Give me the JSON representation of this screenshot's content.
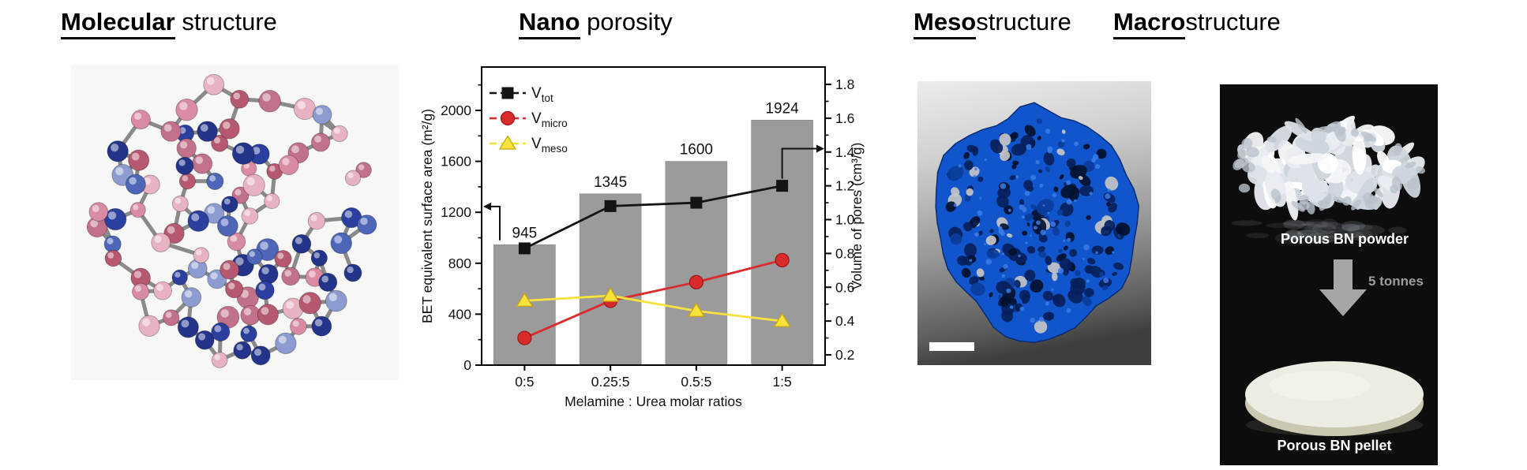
{
  "titles": [
    {
      "emphasis": "Molecular",
      "rest": " structure"
    },
    {
      "emphasis": "Nano",
      "rest": " porosity"
    },
    {
      "emphasis": "Meso",
      "rest": "structure"
    },
    {
      "emphasis": "Macro",
      "rest": "structure"
    }
  ],
  "chart_data": {
    "type": "bar+line",
    "categories": [
      "0:5",
      "0.25:5",
      "0.5:5",
      "1:5"
    ],
    "xlabel": "Melamine : Urea molar ratios",
    "bars": {
      "name": "BET equivalent surface area",
      "axis": "left",
      "values": [
        945,
        1345,
        1600,
        1924
      ],
      "labels": [
        "945",
        "1345",
        "1600",
        "1924"
      ],
      "color": "#9b9b9b"
    },
    "series": [
      {
        "name": "V_tot",
        "label_main": "V",
        "label_sub": "tot",
        "axis": "right",
        "values": [
          0.83,
          1.08,
          1.1,
          1.2
        ],
        "color": "#141414",
        "marker": "square",
        "marker_edge": "#000000"
      },
      {
        "name": "V_micro",
        "label_main": "V",
        "label_sub": "micro",
        "axis": "right",
        "values": [
          0.3,
          0.52,
          0.63,
          0.76
        ],
        "color": "#d92b2b",
        "marker": "circle",
        "marker_edge": "#9e1414"
      },
      {
        "name": "V_meso",
        "label_main": "V",
        "label_sub": "meso",
        "axis": "right",
        "values": [
          0.52,
          0.55,
          0.46,
          0.4
        ],
        "color": "#f6e23c",
        "marker": "triangle",
        "marker_edge": "#c9a70b"
      }
    ],
    "left_axis": {
      "label": "BET equivalent surface area (m²/g)",
      "ticks": [
        0,
        400,
        800,
        1200,
        1600,
        2000
      ],
      "tick_labels": [
        "0",
        "400",
        "800",
        "1200",
        "1600",
        "2000"
      ],
      "minor_step": 200,
      "min": 0,
      "max": 2340
    },
    "right_axis": {
      "label": "Volume of pores (cm³/g)",
      "ticks": [
        0.2,
        0.4,
        0.6,
        0.8,
        1.0,
        1.2,
        1.4,
        1.6,
        1.8
      ],
      "tick_labels": [
        "0.2",
        "0.4",
        "0.6",
        "0.8",
        "1.0",
        "1.2",
        "1.4",
        "1.6",
        "1.8"
      ],
      "minor_step": 0.2,
      "min": 0.14,
      "max": 1.9
    },
    "annotations": {
      "bars_to_left_axis": {
        "from_value": 980,
        "to_value": 1245
      },
      "line_to_right_axis": {
        "category_index": 3,
        "elbow_value": 1.42
      }
    },
    "legend_position": "top-left-inside",
    "grid": false
  },
  "meso_panel": {
    "has_scale_bar": true,
    "scale_bar_color": "#ffffff",
    "blob_color": "#1155cc"
  },
  "macro_panel": {
    "powder_label": "Porous BN powder",
    "arrow_label": "5 tonnes",
    "pellet_label": "Porous BN pellet",
    "arrow_color": "#a6a6a6"
  },
  "illustrations": {
    "molecule": {
      "seed": 7,
      "atom_count": 95,
      "pink_palette": [
        "#d98ba1",
        "#e7b3c2",
        "#c2718a",
        "#b55870"
      ],
      "blue_palette": [
        "#2a3f9e",
        "#4d66b8",
        "#8c9cd1",
        "#23348a"
      ],
      "bond_color": "#8a8a8a"
    },
    "meso": {
      "seed": 11,
      "pore_count": 190,
      "speck_count": 70
    },
    "powder": {
      "seed": 5,
      "flake_count": 95,
      "palette": [
        "#ffffff",
        "#f4f6f8",
        "#e9edf2",
        "#dde3ea",
        "#cdd5dd"
      ]
    }
  }
}
